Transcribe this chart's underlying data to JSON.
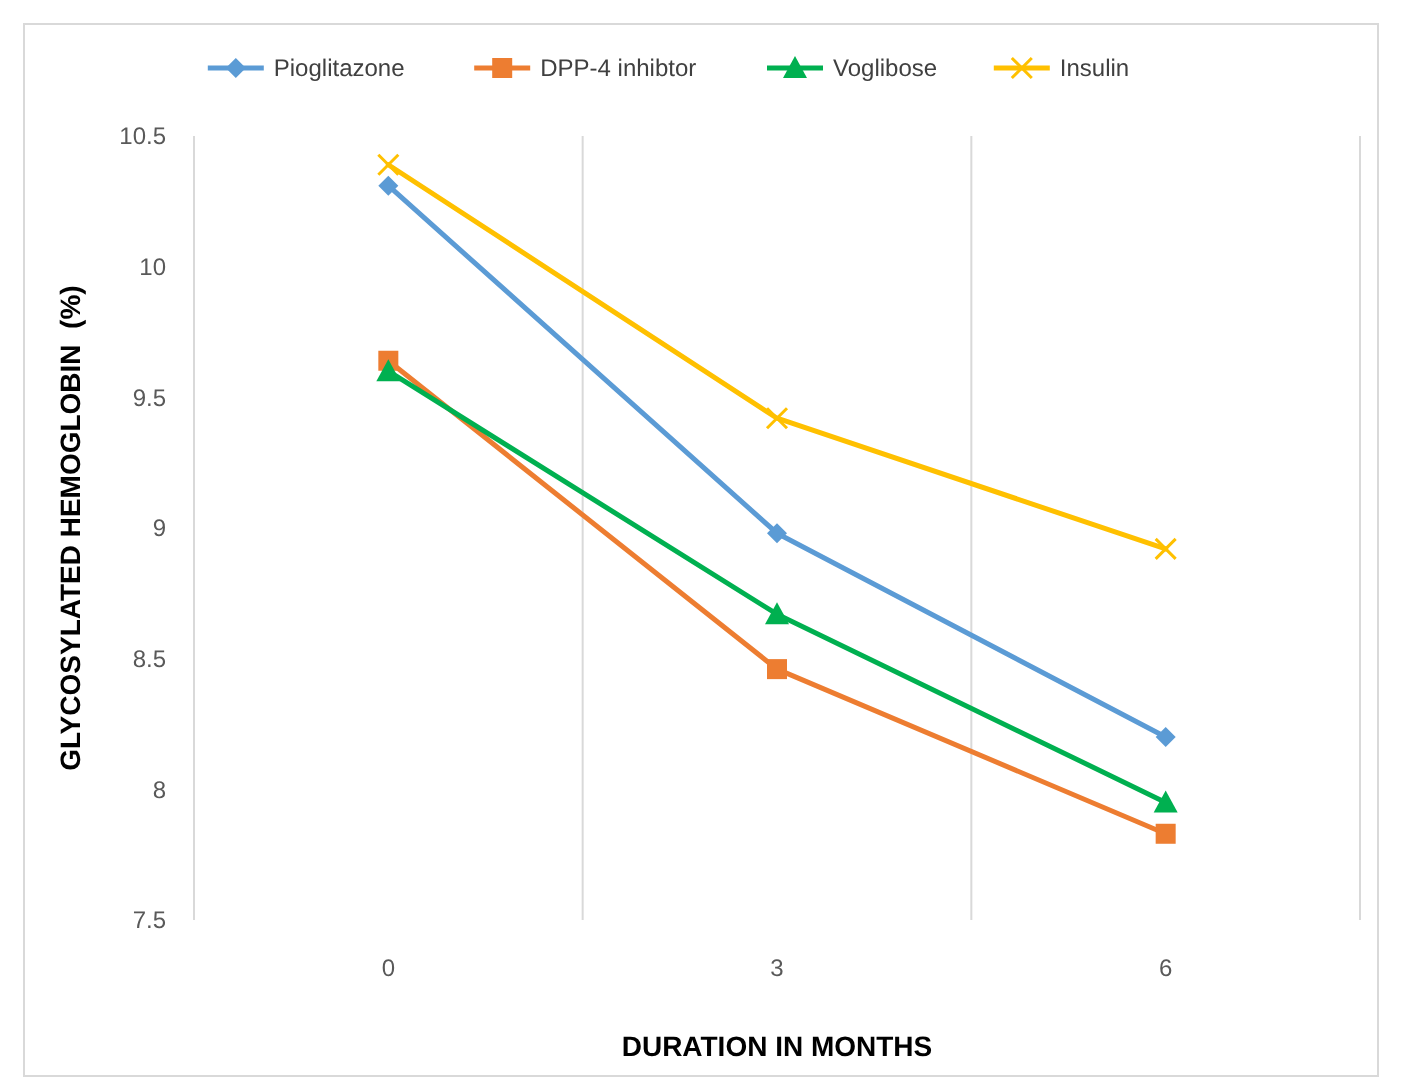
{
  "chart_data": {
    "type": "line",
    "xlabel": "DURATION IN MONTHS",
    "ylabel": "GLYCOSYLATED HEMOGLOBIN  (%)",
    "categories": [
      "0",
      "3",
      "6"
    ],
    "ylim": [
      7.5,
      10.5
    ],
    "yticks": [
      7.5,
      8,
      8.5,
      9,
      9.5,
      10,
      10.5
    ],
    "grid": "x",
    "legend": "top",
    "series": [
      {
        "name": "Pioglitazone",
        "color": "#5b9bd5",
        "marker": "diamond",
        "values": [
          10.31,
          8.98,
          8.2
        ]
      },
      {
        "name": "DPP-4 inhibtor",
        "color": "#ed7d31",
        "marker": "square",
        "values": [
          9.64,
          8.46,
          7.83
        ]
      },
      {
        "name": "Voglibose",
        "color": "#00b050",
        "marker": "triangle",
        "values": [
          9.6,
          8.67,
          7.95
        ]
      },
      {
        "name": "Insulin",
        "color": "#ffc000",
        "marker": "cross",
        "values": [
          10.39,
          9.42,
          8.92
        ]
      }
    ]
  }
}
